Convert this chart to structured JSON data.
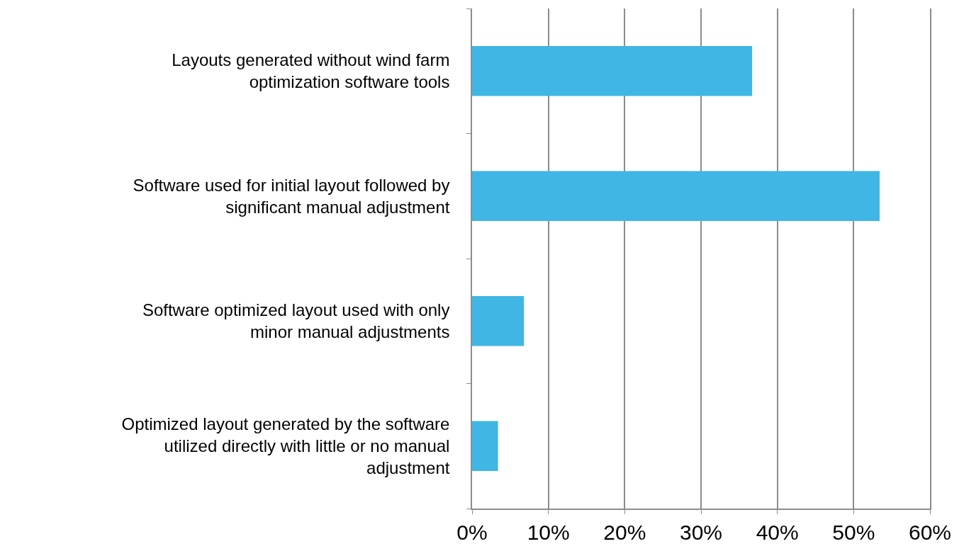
{
  "chart_data": {
    "type": "bar",
    "orientation": "horizontal",
    "categories": [
      "Layouts generated without wind farm optimization software tools",
      "Software used for initial layout followed by significant manual adjustment",
      "Software optimized layout used with only minor manual adjustments",
      "Optimized layout generated by the software utilized directly with little or no manual adjustment"
    ],
    "values": [
      36.7,
      53.4,
      6.8,
      3.4
    ],
    "color": "#3fb6e3",
    "xlim": [
      0,
      60
    ],
    "xticks": [
      {
        "value": 0,
        "label": "0%"
      },
      {
        "value": 10,
        "label": "10%"
      },
      {
        "value": 20,
        "label": "20%"
      },
      {
        "value": 30,
        "label": "30%"
      },
      {
        "value": 40,
        "label": "40%"
      },
      {
        "value": 50,
        "label": "50%"
      },
      {
        "value": 60,
        "label": "60%"
      }
    ],
    "grid": "x"
  }
}
